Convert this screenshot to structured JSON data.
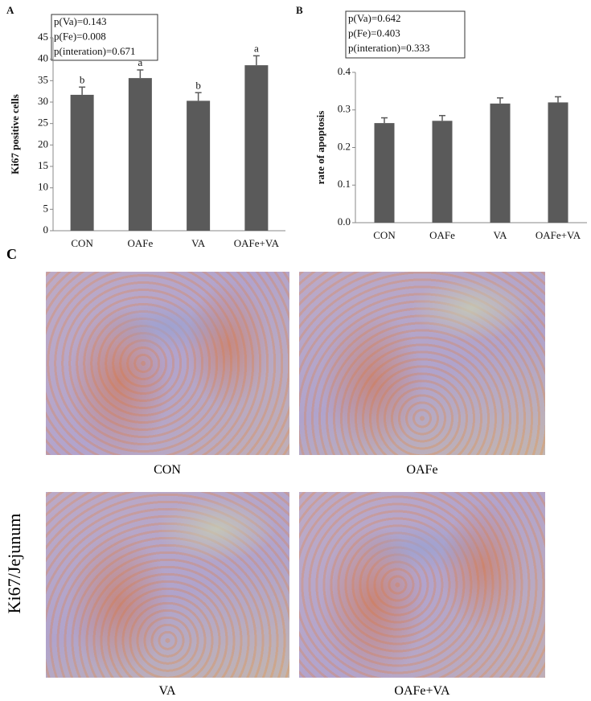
{
  "chart_data": [
    {
      "type": "bar",
      "panel": "A",
      "ylabel": "Ki67 positive cells",
      "annotations": [
        "p(Va)=0.143",
        "p(Fe)=0.008",
        "p(interation)=0.671"
      ],
      "categories": [
        "CON",
        "OAFe",
        "VA",
        "OAFe+VA"
      ],
      "values": [
        31.7,
        35.6,
        30.3,
        38.6
      ],
      "errors": [
        1.8,
        1.9,
        1.9,
        2.2
      ],
      "letters": [
        "b",
        "a",
        "b",
        "a"
      ],
      "color": "#5a5a5a",
      "ylim": [
        0,
        45
      ],
      "yticks": [
        0,
        5,
        10,
        15,
        20,
        25,
        30,
        35,
        40,
        45
      ]
    },
    {
      "type": "bar",
      "panel": "B",
      "ylabel": "rate of apoptosis",
      "annotations": [
        "p(Va)=0.642",
        "p(Fe)=0.403",
        "p(interation)=0.333"
      ],
      "categories": [
        "CON",
        "OAFe",
        "VA",
        "OAFe+VA"
      ],
      "values": [
        0.265,
        0.271,
        0.317,
        0.32
      ],
      "errors": [
        0.014,
        0.014,
        0.015,
        0.015
      ],
      "color": "#5a5a5a",
      "ylim": [
        0,
        0.4
      ],
      "yticks": [
        {
          "value": 0,
          "label": "0.0"
        },
        0.1,
        0.2,
        0.3,
        0.4
      ]
    }
  ],
  "panel_c": {
    "label": "C",
    "side_label": "Ki67/Jejunum",
    "images": [
      {
        "caption": "CON"
      },
      {
        "caption": "OAFe"
      },
      {
        "caption": "VA"
      },
      {
        "caption": "OAFe+VA"
      }
    ]
  }
}
